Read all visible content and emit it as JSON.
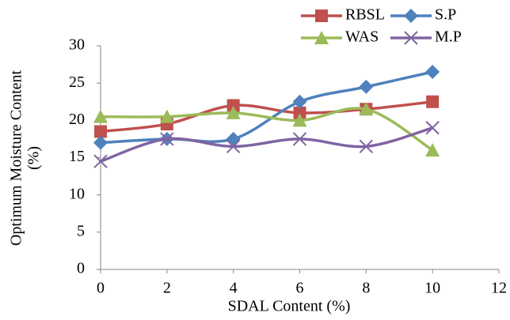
{
  "chart_data": {
    "type": "line",
    "x_label": "SDAL Content (%)",
    "y_label": [
      "Optimum Moisture Content",
      "(%)"
    ],
    "x": [
      0,
      2,
      4,
      6,
      8,
      10
    ],
    "xlim": [
      0,
      12
    ],
    "xticks": [
      0,
      2,
      4,
      6,
      8,
      10,
      12
    ],
    "ylim": [
      0,
      30
    ],
    "yticks": [
      0,
      5,
      10,
      15,
      20,
      25,
      30
    ],
    "grid": false,
    "smooth": true,
    "legend": "top-right",
    "series": [
      {
        "name": "RBSL",
        "color": "#c0504d",
        "marker": "square",
        "values": [
          18.5,
          19.5,
          22,
          21,
          21.5,
          22.5
        ]
      },
      {
        "name": "S.P",
        "color": "#4f81bd",
        "marker": "diamond",
        "values": [
          17,
          17.5,
          17.5,
          22.5,
          24.5,
          26.5
        ]
      },
      {
        "name": "WAS",
        "color": "#9bbb59",
        "marker": "triangle",
        "values": [
          20.5,
          20.5,
          21,
          20,
          21.5,
          16
        ]
      },
      {
        "name": "M.P",
        "color": "#8064a2",
        "marker": "x",
        "values": [
          14.5,
          17.5,
          16.5,
          17.5,
          16.5,
          19
        ]
      }
    ]
  }
}
